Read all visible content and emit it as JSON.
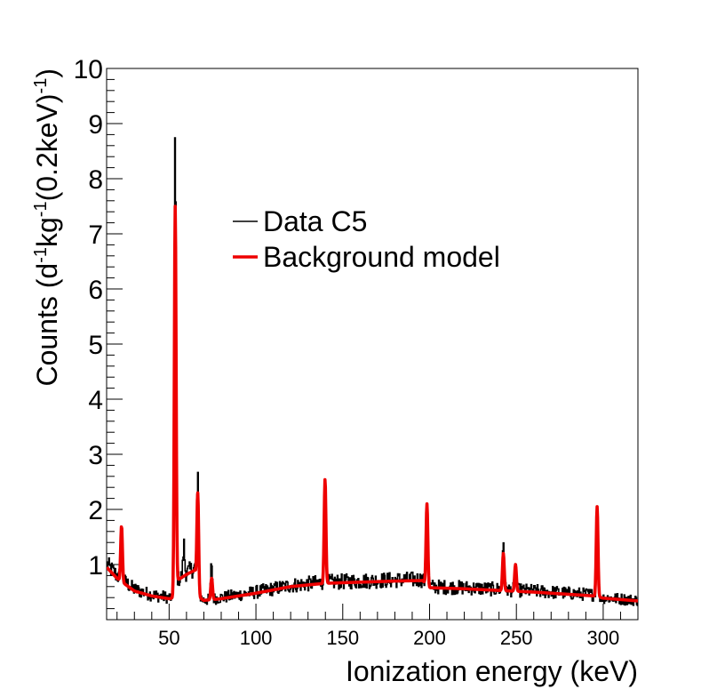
{
  "chart_data": {
    "type": "line",
    "title": "",
    "xlabel": "Ionization energy (keV)",
    "ylabel_parts": {
      "a": "Counts (d",
      "e1": "-1",
      "b": "kg",
      "e2": "-1",
      "c": "(0.2keV)",
      "e3": "-1",
      "d": ")"
    },
    "xlim": [
      14,
      320
    ],
    "ylim": [
      0,
      10
    ],
    "x_ticks": [
      50,
      100,
      150,
      200,
      250,
      300
    ],
    "x_tick_labels": [
      "50",
      "100",
      "150",
      "200",
      "250",
      "300"
    ],
    "y_ticks": [
      1,
      2,
      3,
      4,
      5,
      6,
      7,
      8,
      9,
      10
    ],
    "y_tick_labels": [
      "1",
      "2",
      "3",
      "4",
      "5",
      "6",
      "7",
      "8",
      "9",
      "10"
    ],
    "legend": {
      "position": "upper-middle"
    },
    "series": [
      {
        "name": "Data C5",
        "color": "#000000",
        "style": "histogram",
        "continuum": [
          [
            14,
            1.0
          ],
          [
            20,
            0.8
          ],
          [
            30,
            0.55
          ],
          [
            40,
            0.45
          ],
          [
            50,
            0.4
          ],
          [
            53,
            0.4
          ],
          [
            54,
            0.7
          ],
          [
            60,
            0.85
          ],
          [
            65,
            0.95
          ],
          [
            66.5,
            0.45
          ],
          [
            70,
            0.35
          ],
          [
            80,
            0.4
          ],
          [
            100,
            0.5
          ],
          [
            120,
            0.62
          ],
          [
            140,
            0.68
          ],
          [
            160,
            0.7
          ],
          [
            180,
            0.72
          ],
          [
            196,
            0.73
          ],
          [
            200,
            0.6
          ],
          [
            220,
            0.58
          ],
          [
            240,
            0.55
          ],
          [
            260,
            0.52
          ],
          [
            280,
            0.48
          ],
          [
            295,
            0.45
          ],
          [
            300,
            0.4
          ],
          [
            320,
            0.35
          ]
        ],
        "peaks": [
          [
            22.6,
            1.7
          ],
          [
            53.5,
            8.8
          ],
          [
            58.5,
            1.35
          ],
          [
            66.5,
            2.5
          ],
          [
            74.5,
            1.05
          ],
          [
            139.8,
            2.6
          ],
          [
            198.5,
            2.1
          ],
          [
            242.5,
            1.45
          ],
          [
            249.5,
            1.05
          ],
          [
            296.5,
            2.15
          ]
        ]
      },
      {
        "name": "Background model",
        "color": "#ee0000",
        "style": "line",
        "continuum": [
          [
            14,
            0.95
          ],
          [
            20,
            0.75
          ],
          [
            30,
            0.52
          ],
          [
            40,
            0.43
          ],
          [
            50,
            0.38
          ],
          [
            53,
            0.4
          ],
          [
            54,
            0.7
          ],
          [
            60,
            0.82
          ],
          [
            65,
            0.9
          ],
          [
            66.5,
            0.42
          ],
          [
            70,
            0.35
          ],
          [
            80,
            0.38
          ],
          [
            100,
            0.48
          ],
          [
            120,
            0.6
          ],
          [
            140,
            0.66
          ],
          [
            160,
            0.68
          ],
          [
            180,
            0.7
          ],
          [
            196,
            0.71
          ],
          [
            200,
            0.58
          ],
          [
            220,
            0.56
          ],
          [
            240,
            0.53
          ],
          [
            260,
            0.5
          ],
          [
            280,
            0.46
          ],
          [
            295,
            0.43
          ],
          [
            300,
            0.39
          ],
          [
            320,
            0.34
          ]
        ],
        "peaks": [
          [
            22.6,
            1.7
          ],
          [
            53.5,
            7.5
          ],
          [
            66.5,
            2.3
          ],
          [
            74.5,
            0.75
          ],
          [
            139.8,
            2.55
          ],
          [
            198.5,
            2.1
          ],
          [
            242.5,
            1.2
          ],
          [
            249.5,
            1.0
          ],
          [
            296.5,
            2.05
          ]
        ]
      }
    ]
  }
}
